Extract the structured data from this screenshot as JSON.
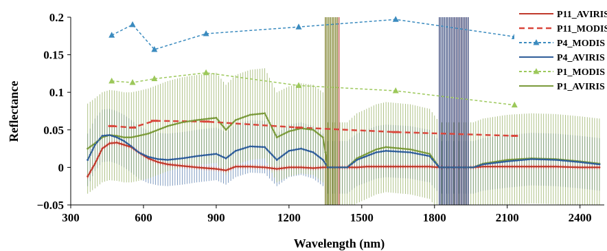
{
  "chart_data": {
    "type": "line",
    "title": "",
    "xlabel": "Wavelength (nm)",
    "ylabel": "Reflectance",
    "xlim": [
      300,
      2500
    ],
    "ylim": [
      -0.05,
      0.2
    ],
    "x_ticks": [
      300,
      600,
      900,
      1200,
      1500,
      1800,
      2100,
      2400
    ],
    "y_ticks": [
      -0.05,
      0,
      0.05,
      0.1,
      0.15,
      0.2
    ],
    "x_tick_labels": [
      "300",
      "600",
      "900",
      "1200",
      "1500",
      "1800",
      "2100",
      "2400"
    ],
    "y_tick_labels": [
      "−0.05",
      "0",
      "0.05",
      "0.1",
      "0.15",
      "0.2"
    ],
    "grid": false,
    "legend_position": "top-right",
    "series": [
      {
        "name": "P11_AVIRIS",
        "style": "solid",
        "color": "#c0392b",
        "error": 0.003,
        "x": [
          370,
          400,
          430,
          460,
          490,
          520,
          550,
          580,
          620,
          660,
          700,
          760,
          820,
          900,
          940,
          980,
          1040,
          1100,
          1150,
          1200,
          1250,
          1300,
          1340,
          1360,
          1400,
          1440,
          1480,
          1520,
          1560,
          1600,
          1700,
          1780,
          1820,
          1860,
          1900,
          1960,
          2000,
          2100,
          2200,
          2300,
          2400,
          2480
        ],
        "y": [
          -0.012,
          0.005,
          0.025,
          0.032,
          0.033,
          0.03,
          0.027,
          0.02,
          0.012,
          0.007,
          0.004,
          0.002,
          0.0,
          -0.002,
          -0.004,
          0.001,
          0.001,
          0.0,
          -0.002,
          0.0,
          0.0,
          -0.001,
          0.0,
          0.0,
          0.0,
          0.0,
          0.0,
          0.001,
          0.001,
          0.001,
          0.001,
          0.001,
          0.0,
          0.0,
          0.0,
          0.0,
          0.001,
          0.001,
          0.001,
          0.001,
          0.0,
          0.0
        ]
      },
      {
        "name": "P11_MODIS",
        "style": "dashed",
        "color": "#d9463b",
        "marker": "dash",
        "x": [
          469,
          555,
          645,
          858,
          1240,
          1640,
          2130
        ],
        "y": [
          0.055,
          0.053,
          0.062,
          0.061,
          0.053,
          0.047,
          0.042
        ]
      },
      {
        "name": "P4_MODIS",
        "style": "dashed",
        "color": "#3b8bbf",
        "marker": "triangle",
        "x": [
          469,
          555,
          645,
          858,
          1240,
          1640,
          2130
        ],
        "y": [
          0.176,
          0.19,
          0.157,
          0.178,
          0.187,
          0.197,
          0.174
        ]
      },
      {
        "name": "P4_AVIRIS",
        "style": "solid",
        "color": "#2e5d99",
        "error": 0.035,
        "x": [
          370,
          400,
          430,
          460,
          490,
          520,
          550,
          580,
          620,
          660,
          700,
          760,
          820,
          900,
          940,
          980,
          1040,
          1100,
          1150,
          1200,
          1250,
          1300,
          1340,
          1360,
          1400,
          1440,
          1480,
          1520,
          1560,
          1600,
          1700,
          1780,
          1820,
          1860,
          1900,
          1960,
          2000,
          2100,
          2200,
          2300,
          2400,
          2480
        ],
        "y": [
          0.01,
          0.03,
          0.042,
          0.043,
          0.04,
          0.035,
          0.028,
          0.02,
          0.014,
          0.011,
          0.01,
          0.012,
          0.015,
          0.018,
          0.012,
          0.022,
          0.028,
          0.027,
          0.01,
          0.022,
          0.025,
          0.02,
          0.01,
          0.0,
          0.0,
          0.0,
          0.01,
          0.015,
          0.02,
          0.022,
          0.02,
          0.015,
          0.0,
          0.0,
          0.0,
          0.0,
          0.004,
          0.008,
          0.011,
          0.01,
          0.007,
          0.004
        ]
      },
      {
        "name": "P1_MODIS",
        "style": "dashed",
        "color": "#9cc85a",
        "marker": "triangle",
        "x": [
          469,
          555,
          645,
          858,
          1240,
          1640,
          2130
        ],
        "y": [
          0.115,
          0.113,
          0.118,
          0.126,
          0.109,
          0.102,
          0.083
        ]
      },
      {
        "name": "P1_AVIRIS",
        "style": "solid",
        "color": "#7a9a3a",
        "error": 0.06,
        "x": [
          370,
          400,
          430,
          460,
          490,
          520,
          550,
          580,
          620,
          660,
          700,
          760,
          820,
          900,
          940,
          980,
          1040,
          1100,
          1150,
          1200,
          1250,
          1300,
          1340,
          1360,
          1400,
          1440,
          1480,
          1520,
          1560,
          1600,
          1700,
          1780,
          1820,
          1860,
          1900,
          1960,
          2000,
          2100,
          2200,
          2300,
          2400,
          2480
        ],
        "y": [
          0.025,
          0.032,
          0.04,
          0.043,
          0.042,
          0.04,
          0.04,
          0.042,
          0.045,
          0.05,
          0.055,
          0.06,
          0.063,
          0.066,
          0.05,
          0.063,
          0.07,
          0.072,
          0.04,
          0.048,
          0.052,
          0.05,
          0.04,
          0.0,
          0.0,
          0.0,
          0.012,
          0.018,
          0.024,
          0.027,
          0.024,
          0.018,
          0.0,
          0.0,
          0.0,
          0.0,
          0.005,
          0.01,
          0.012,
          0.011,
          0.008,
          0.005
        ]
      }
    ]
  }
}
